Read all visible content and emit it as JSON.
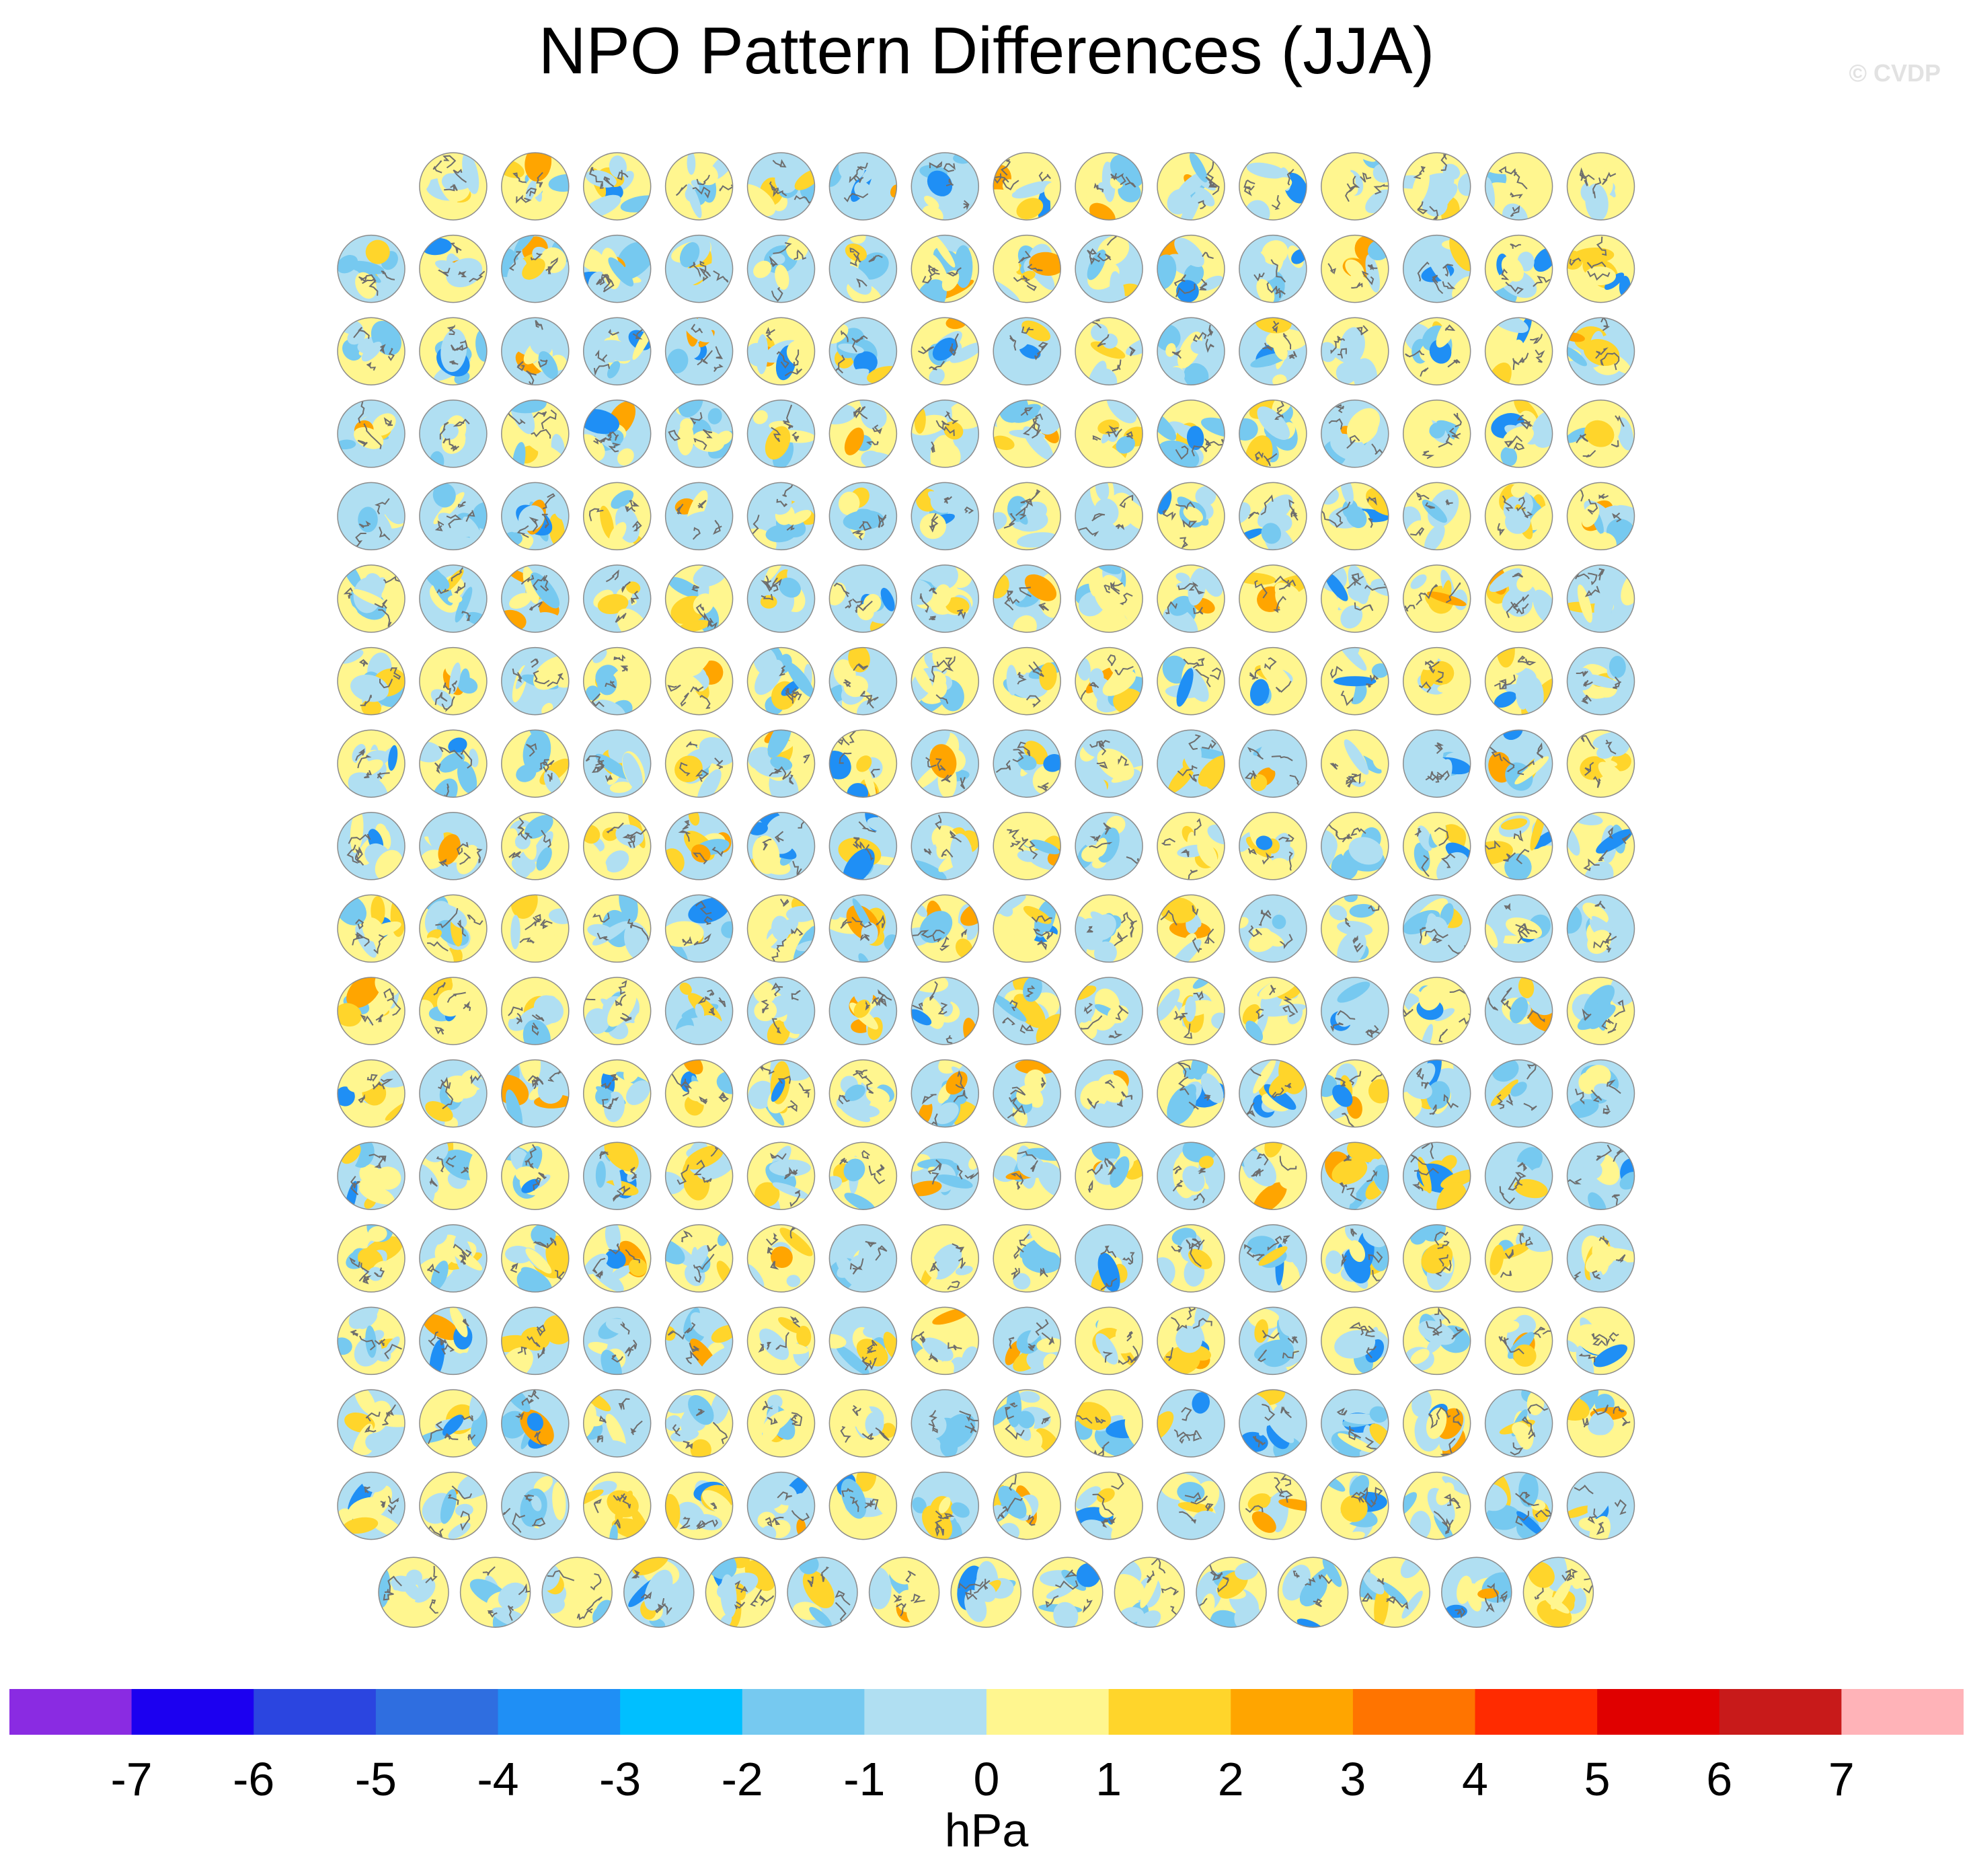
{
  "title": "NPO Pattern Differences (JJA)",
  "watermark": "© CVDP",
  "colorbar": {
    "unit": "hPa",
    "tick_labels": [
      "-7",
      "-6",
      "-5",
      "-4",
      "-3",
      "-2",
      "-1",
      "0",
      "1",
      "2",
      "3",
      "4",
      "5",
      "6",
      "7"
    ],
    "colors": [
      "#8a2be2",
      "#1c00f0",
      "#2b45e0",
      "#2f6ee0",
      "#1f8ff5",
      "#00bfff",
      "#76c9f0",
      "#b0dff2",
      "#fff68f",
      "#ffd52b",
      "#ffa500",
      "#ff7400",
      "#ff2b00",
      "#e00000",
      "#c81a1a",
      "#ffb3b8"
    ]
  },
  "chart_data": {
    "type": "heatmap",
    "title": "NPO Pattern Differences (JJA)",
    "description_kind": "grid of small north-polar stereographic difference maps",
    "grid": {
      "rows": 18,
      "first_row_panels": 15,
      "full_row_panels": 16,
      "last_row_panels": 15
    },
    "colorbar_unit": "hPa",
    "colorbar_levels": [
      -7,
      -6,
      -5,
      -4,
      -3,
      -2,
      -1,
      0,
      1,
      2,
      3,
      4,
      5,
      6,
      7
    ],
    "value_range": [
      -8,
      8
    ]
  }
}
